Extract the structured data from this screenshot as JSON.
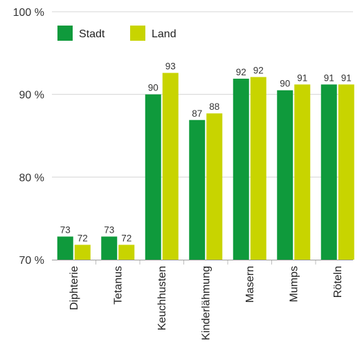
{
  "chart_data": {
    "type": "bar",
    "title": "",
    "xlabel": "",
    "ylabel": "",
    "ylim": [
      70,
      100
    ],
    "yticks": [
      70,
      80,
      90,
      100
    ],
    "ytick_labels": [
      "70 %",
      "80 %",
      "90 %",
      "100 %"
    ],
    "grid": true,
    "legend_position": "top-left",
    "categories": [
      "Diphterie",
      "Tetanus",
      "Keuchhusten",
      "Kinderlähmung",
      "Masern",
      "Mumps",
      "Röteln"
    ],
    "series": [
      {
        "name": "Stadt",
        "color": "#0f9a3c",
        "values": [
          72.8,
          72.8,
          90.0,
          86.9,
          91.9,
          90.5,
          91.2
        ],
        "labels": [
          "73",
          "73",
          "90",
          "87",
          "92",
          "90",
          "91"
        ]
      },
      {
        "name": "Land",
        "color": "#c8d400",
        "values": [
          71.8,
          71.8,
          92.6,
          87.7,
          92.1,
          91.2,
          91.2
        ],
        "labels": [
          "72",
          "72",
          "93",
          "88",
          "92",
          "91",
          "91"
        ]
      }
    ]
  }
}
